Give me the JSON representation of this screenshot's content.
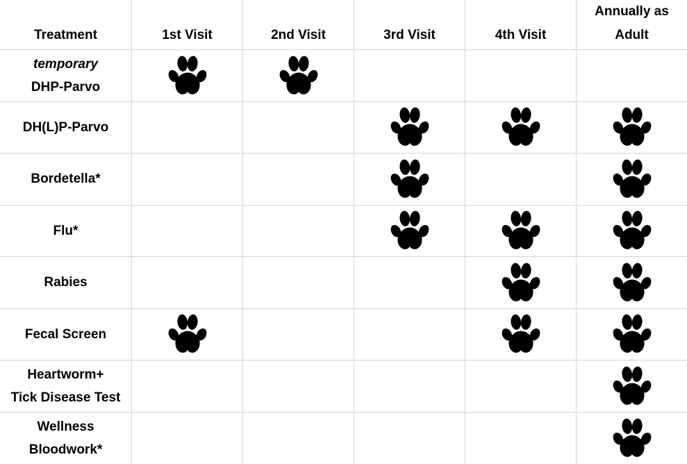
{
  "table": {
    "columns": [
      {
        "label": "Treatment"
      },
      {
        "label": "1st Visit"
      },
      {
        "label": "2nd Visit"
      },
      {
        "label": "3rd Visit"
      },
      {
        "label": "4th Visit"
      },
      {
        "label": "Annually as Adult"
      }
    ],
    "rows": [
      {
        "treatment_lines": [
          {
            "text": "temporary",
            "italic": true
          },
          {
            "text": "DHP-Parvo",
            "italic": false
          }
        ],
        "visits": [
          true,
          true,
          false,
          false,
          false
        ]
      },
      {
        "treatment_lines": [
          {
            "text": "DH(L)P-Parvo",
            "italic": false
          }
        ],
        "visits": [
          false,
          false,
          true,
          true,
          true
        ]
      },
      {
        "treatment_lines": [
          {
            "text": "Bordetella*",
            "italic": false
          }
        ],
        "visits": [
          false,
          false,
          true,
          false,
          true
        ]
      },
      {
        "treatment_lines": [
          {
            "text": "Flu*",
            "italic": false
          }
        ],
        "visits": [
          false,
          false,
          true,
          true,
          true
        ]
      },
      {
        "treatment_lines": [
          {
            "text": "Rabies",
            "italic": false
          }
        ],
        "visits": [
          false,
          false,
          false,
          true,
          true
        ]
      },
      {
        "treatment_lines": [
          {
            "text": "Fecal Screen",
            "italic": false
          }
        ],
        "visits": [
          true,
          false,
          false,
          true,
          true
        ]
      },
      {
        "treatment_lines": [
          {
            "text": "Heartworm+",
            "italic": false
          },
          {
            "text": "Tick Disease Test",
            "italic": false
          }
        ],
        "visits": [
          false,
          false,
          false,
          false,
          true
        ]
      },
      {
        "treatment_lines": [
          {
            "text": "Wellness",
            "italic": false
          },
          {
            "text": "Bloodwork*",
            "italic": false
          }
        ],
        "visits": [
          false,
          false,
          false,
          false,
          true
        ]
      }
    ]
  },
  "icons": {
    "mark": "paw-print-icon"
  },
  "colors": {
    "grid_line": "#d4d4d4",
    "text": "#000000",
    "paw": "#000000",
    "background": "#ffffff"
  }
}
